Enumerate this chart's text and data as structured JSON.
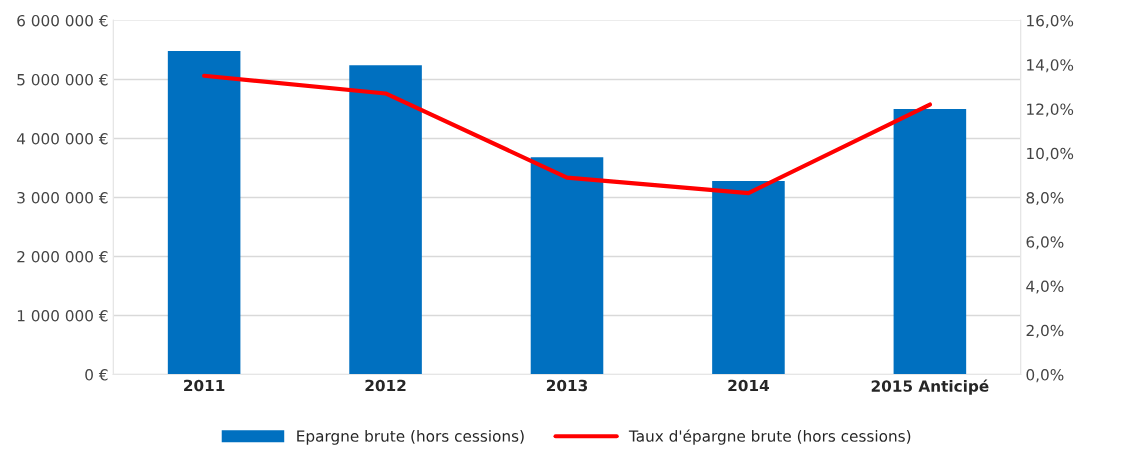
{
  "chart_data": {
    "type": "bar",
    "categories": [
      "2011",
      "2012",
      "2013",
      "2014",
      "2015 Anticipé"
    ],
    "series": [
      {
        "name": "Epargne brute (hors cessions)",
        "color": "#0070c0",
        "values": [
          5480000,
          5240000,
          3680000,
          3280000,
          4500000
        ]
      },
      {
        "name": "Taux d'épargne brute (hors cessions)",
        "type": "line",
        "axis": "y2",
        "color": "#ff0000",
        "values": [
          13.5,
          12.7,
          8.9,
          8.2,
          12.2
        ]
      }
    ],
    "ylim": [
      0,
      6000000
    ],
    "yticks": [
      {
        "value": 0,
        "label": "0 €"
      },
      {
        "value": 1000000,
        "label": "1 000 000 €"
      },
      {
        "value": 2000000,
        "label": "2 000 000 €"
      },
      {
        "value": 3000000,
        "label": "3 000 000 €"
      },
      {
        "value": 4000000,
        "label": "4 000 000 €"
      },
      {
        "value": 5000000,
        "label": "5 000 000 €"
      },
      {
        "value": 6000000,
        "label": "6 000 000 €"
      }
    ],
    "y2lim": [
      0,
      16
    ],
    "y2ticks": [
      {
        "value": 0,
        "label": "0,0%"
      },
      {
        "value": 2,
        "label": "2,0%"
      },
      {
        "value": 4,
        "label": "4,0%"
      },
      {
        "value": 6,
        "label": "6,0%"
      },
      {
        "value": 8,
        "label": "8,0%"
      },
      {
        "value": 10,
        "label": "10,0%"
      },
      {
        "value": 12,
        "label": "12,0%"
      },
      {
        "value": 14,
        "label": "14,0%"
      },
      {
        "value": 16,
        "label": "16,0%"
      }
    ],
    "grid": "y",
    "legend": "bottom",
    "marker": "none",
    "line_style": "solid"
  }
}
